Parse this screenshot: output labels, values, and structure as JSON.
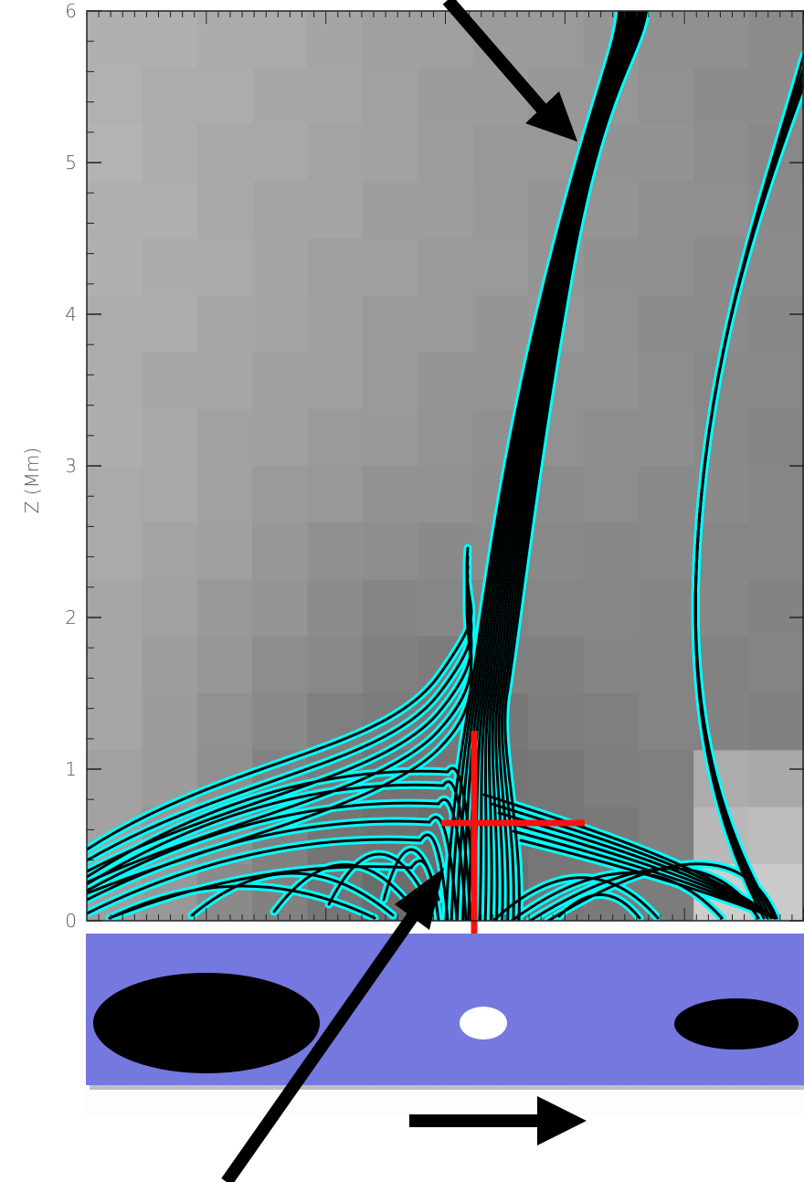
{
  "plot": {
    "y_axis": {
      "label": "Z (Mm)",
      "range": [
        0,
        6
      ],
      "ticks": [
        "0",
        "1",
        "2",
        "3",
        "4",
        "5",
        "6"
      ]
    },
    "background": "grayscale intensity map",
    "field_line_color": "#00ffff",
    "field_line_core_color": "#000000",
    "null_point_marker_color": "#ff0000"
  },
  "photosphere": {
    "background_color": "#7478de",
    "spots": [
      {
        "polarity": "negative",
        "color": "#000000"
      },
      {
        "polarity": "positive",
        "color": "#ffffff"
      },
      {
        "polarity": "negative",
        "color": "#000000"
      }
    ]
  },
  "annotations": {
    "arrow_color": "#000000",
    "direction_arrow": "right-arrow"
  }
}
